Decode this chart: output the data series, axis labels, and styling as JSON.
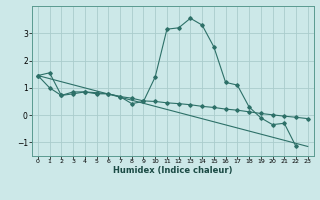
{
  "xlabel": "Humidex (Indice chaleur)",
  "bg_color": "#cce8e8",
  "grid_color": "#aacccc",
  "line_color": "#2d7068",
  "x_min": -0.5,
  "x_max": 23.5,
  "y_min": -1.5,
  "y_max": 4.0,
  "yticks": [
    -1,
    0,
    1,
    2,
    3
  ],
  "xticks": [
    0,
    1,
    2,
    3,
    4,
    5,
    6,
    7,
    8,
    9,
    10,
    11,
    12,
    13,
    14,
    15,
    16,
    17,
    18,
    19,
    20,
    21,
    22,
    23
  ],
  "series1_x": [
    0,
    1,
    2,
    3,
    4,
    5,
    6,
    7,
    8,
    9,
    10,
    11,
    12,
    13,
    14,
    15,
    16,
    17,
    18,
    19,
    20,
    21,
    22
  ],
  "series1_y": [
    1.45,
    1.55,
    0.72,
    0.78,
    0.85,
    0.78,
    0.78,
    0.68,
    0.42,
    0.5,
    1.4,
    3.15,
    3.2,
    3.55,
    3.3,
    2.5,
    1.2,
    1.1,
    0.3,
    -0.1,
    -0.35,
    -0.3,
    -1.15
  ],
  "series2_x": [
    0,
    1,
    2,
    3,
    4,
    5,
    6,
    7,
    8,
    9,
    10,
    11,
    12,
    13,
    14,
    15,
    16,
    17,
    18,
    19,
    20,
    21,
    22,
    23
  ],
  "series2_y": [
    1.45,
    1.0,
    0.72,
    0.85,
    0.85,
    0.82,
    0.78,
    0.68,
    0.62,
    0.52,
    0.5,
    0.45,
    0.42,
    0.38,
    0.32,
    0.28,
    0.22,
    0.18,
    0.12,
    0.06,
    0.01,
    -0.04,
    -0.08,
    -0.13
  ],
  "series3_x": [
    0,
    23
  ],
  "series3_y": [
    1.45,
    -1.15
  ]
}
